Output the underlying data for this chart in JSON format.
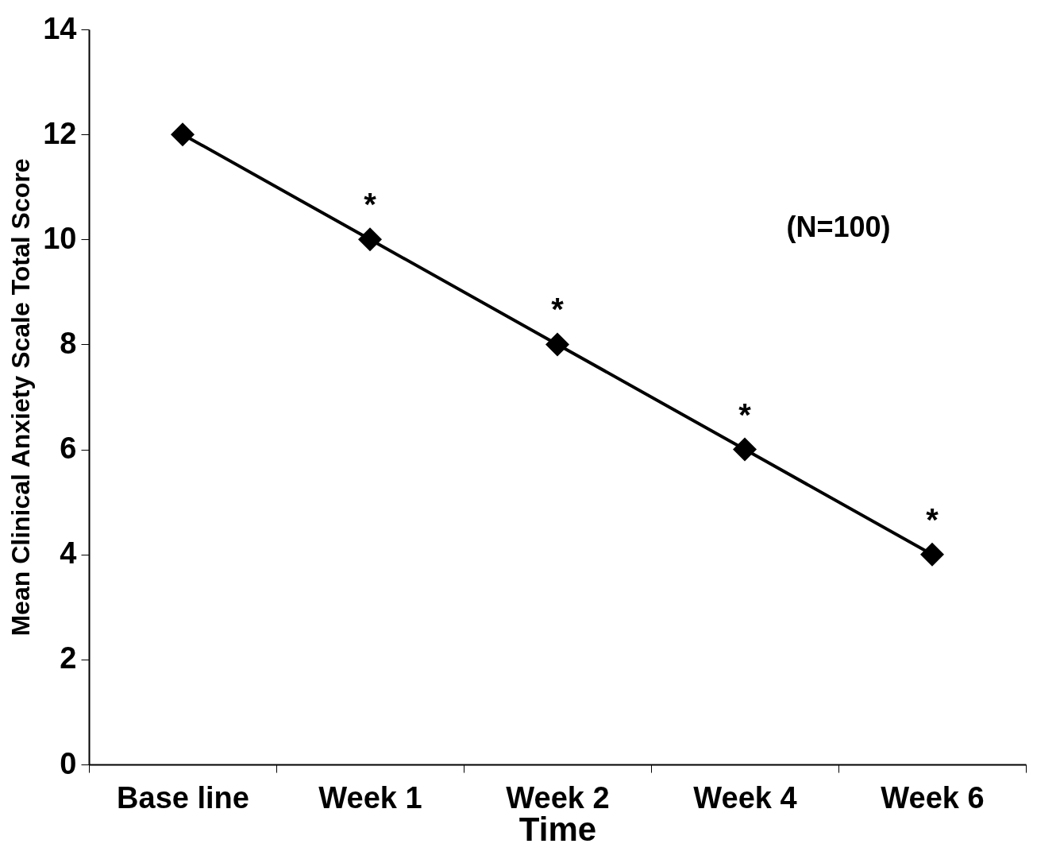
{
  "chart_data": {
    "type": "line",
    "xlabel": "Time",
    "ylabel": "Mean Clinical Anxiety Scale  Total Score",
    "categories": [
      "Base line",
      "Week 1",
      "Week 2",
      "Week 4",
      "Week 6"
    ],
    "series": [
      {
        "color": "#000000",
        "values": [
          12,
          10,
          8,
          6,
          4
        ]
      }
    ],
    "ylim": [
      0,
      14
    ],
    "yticks": [
      0,
      2,
      4,
      6,
      8,
      10,
      12,
      14
    ],
    "marker": "diamond",
    "annotations": [
      {
        "text": "*",
        "x": "Week 1",
        "y": 10
      },
      {
        "text": "*",
        "x": "Week 2",
        "y": 8
      },
      {
        "text": "*",
        "x": "Week 4",
        "y": 6
      },
      {
        "text": "*",
        "x": "Week 6",
        "y": 4
      },
      "(N=100)"
    ]
  }
}
